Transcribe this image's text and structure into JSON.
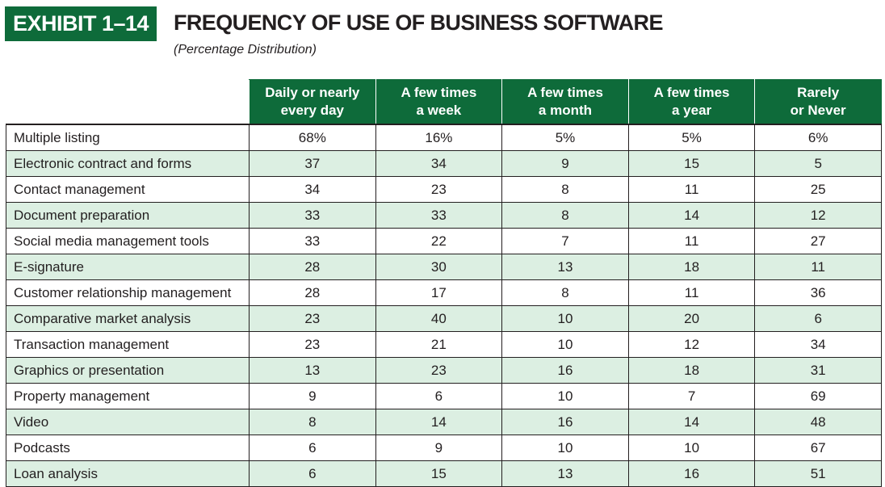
{
  "exhibit": {
    "label": "EXHIBIT 1–14",
    "title": "FREQUENCY OF USE OF BUSINESS SOFTWARE",
    "subtitle": "(Percentage Distribution)"
  },
  "table": {
    "headers": [
      [
        "Daily or nearly",
        "every day"
      ],
      [
        "A few times",
        "a week"
      ],
      [
        "A few times",
        "a month"
      ],
      [
        "A few times",
        "a year"
      ],
      [
        "Rarely",
        "or Never"
      ]
    ],
    "rows": [
      {
        "label": "Multiple listing",
        "values": [
          "68%",
          "16%",
          "5%",
          "5%",
          "6%"
        ]
      },
      {
        "label": "Electronic contract and forms",
        "values": [
          "37",
          "34",
          "9",
          "15",
          "5"
        ]
      },
      {
        "label": "Contact management",
        "values": [
          "34",
          "23",
          "8",
          "11",
          "25"
        ]
      },
      {
        "label": "Document preparation",
        "values": [
          "33",
          "33",
          "8",
          "14",
          "12"
        ]
      },
      {
        "label": "Social media management tools",
        "values": [
          "33",
          "22",
          "7",
          "11",
          "27"
        ]
      },
      {
        "label": "E-signature",
        "values": [
          "28",
          "30",
          "13",
          "18",
          "11"
        ]
      },
      {
        "label": "Customer relationship management",
        "values": [
          "28",
          "17",
          "8",
          "11",
          "36"
        ]
      },
      {
        "label": "Comparative market analysis",
        "values": [
          "23",
          "40",
          "10",
          "20",
          "6"
        ]
      },
      {
        "label": "Transaction management",
        "values": [
          "23",
          "21",
          "10",
          "12",
          "34"
        ]
      },
      {
        "label": "Graphics or presentation",
        "values": [
          "13",
          "23",
          "16",
          "18",
          "31"
        ]
      },
      {
        "label": "Property management",
        "values": [
          "9",
          "6",
          "10",
          "7",
          "69"
        ]
      },
      {
        "label": "Video",
        "values": [
          "8",
          "14",
          "16",
          "14",
          "48"
        ]
      },
      {
        "label": "Podcasts",
        "values": [
          "6",
          "9",
          "10",
          "10",
          "67"
        ]
      },
      {
        "label": "Loan analysis",
        "values": [
          "6",
          "15",
          "13",
          "16",
          "51"
        ]
      }
    ]
  },
  "colors": {
    "header_green": "#0e6b3a",
    "row_tint": "#dcefe2",
    "text": "#231f20"
  }
}
